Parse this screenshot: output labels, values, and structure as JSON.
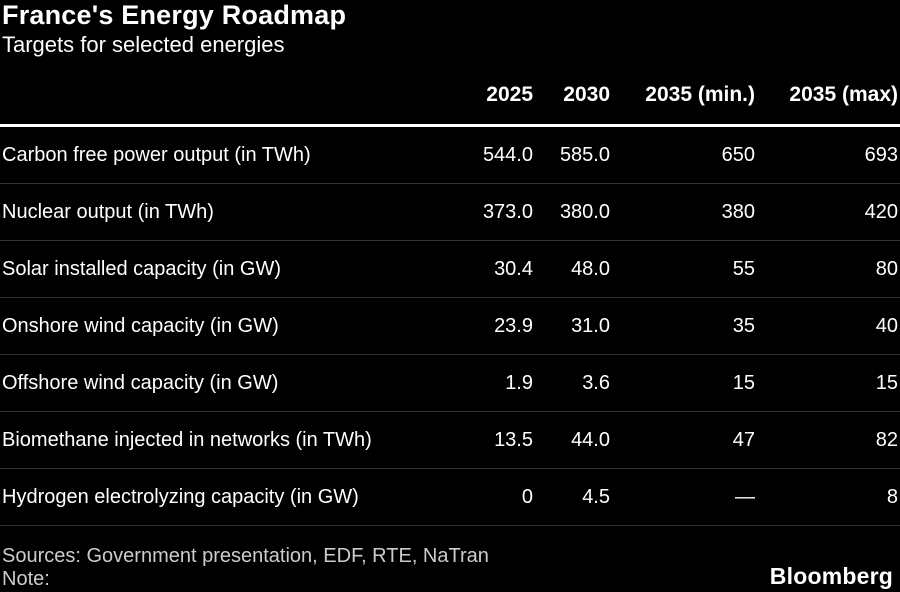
{
  "header": {
    "title": "France's Energy Roadmap",
    "subtitle": "Targets for selected energies"
  },
  "table": {
    "columns": [
      "2025",
      "2030",
      "2035 (min.)",
      "2035 (max)"
    ],
    "rows": [
      {
        "label": "Carbon free power output (in TWh)",
        "values": [
          "544.0",
          "585.0",
          "650",
          "693"
        ]
      },
      {
        "label": "Nuclear output (in TWh)",
        "values": [
          "373.0",
          "380.0",
          "380",
          "420"
        ]
      },
      {
        "label": "Solar installed capacity (in GW)",
        "values": [
          "30.4",
          "48.0",
          "55",
          "80"
        ]
      },
      {
        "label": "Onshore wind capacity (in GW)",
        "values": [
          "23.9",
          "31.0",
          "35",
          "40"
        ]
      },
      {
        "label": "Offshore wind capacity (in GW)",
        "values": [
          "1.9",
          "3.6",
          "15",
          "15"
        ]
      },
      {
        "label": "Biomethane injected in networks (in TWh)",
        "values": [
          "13.5",
          "44.0",
          "47",
          "82"
        ]
      },
      {
        "label": "Hydrogen electrolyzing capacity (in GW)",
        "values": [
          "0",
          "4.5",
          "—",
          "8"
        ]
      }
    ]
  },
  "footer": {
    "sources": "Sources: Government presentation, EDF, RTE, NaTran",
    "note": "Note:",
    "brand": "Bloomberg"
  },
  "colors": {
    "background": "#000000",
    "text": "#ffffff",
    "footer_text": "#cccccc",
    "header_rule": "#ffffff",
    "row_rule": "#333333"
  },
  "chart_data": {
    "type": "table",
    "title": "France's Energy Roadmap",
    "subtitle": "Targets for selected energies",
    "columns": [
      "2025",
      "2030",
      "2035 (min.)",
      "2035 (max)"
    ],
    "rows": [
      {
        "label": "Carbon free power output (in TWh)",
        "values": [
          544.0,
          585.0,
          650,
          693
        ]
      },
      {
        "label": "Nuclear output (in TWh)",
        "values": [
          373.0,
          380.0,
          380,
          420
        ]
      },
      {
        "label": "Solar installed capacity (in GW)",
        "values": [
          30.4,
          48.0,
          55,
          80
        ]
      },
      {
        "label": "Onshore wind capacity (in GW)",
        "values": [
          23.9,
          31.0,
          35,
          40
        ]
      },
      {
        "label": "Offshore wind capacity (in GW)",
        "values": [
          1.9,
          3.6,
          15,
          15
        ]
      },
      {
        "label": "Biomethane injected in networks (in TWh)",
        "values": [
          13.5,
          44.0,
          47,
          82
        ]
      },
      {
        "label": "Hydrogen electrolyzing capacity (in GW)",
        "values": [
          0,
          4.5,
          null,
          8
        ]
      }
    ],
    "sources": "Government presentation, EDF, RTE, NaTran",
    "grid": "horizontal-rules-only",
    "legend_position": "none"
  }
}
